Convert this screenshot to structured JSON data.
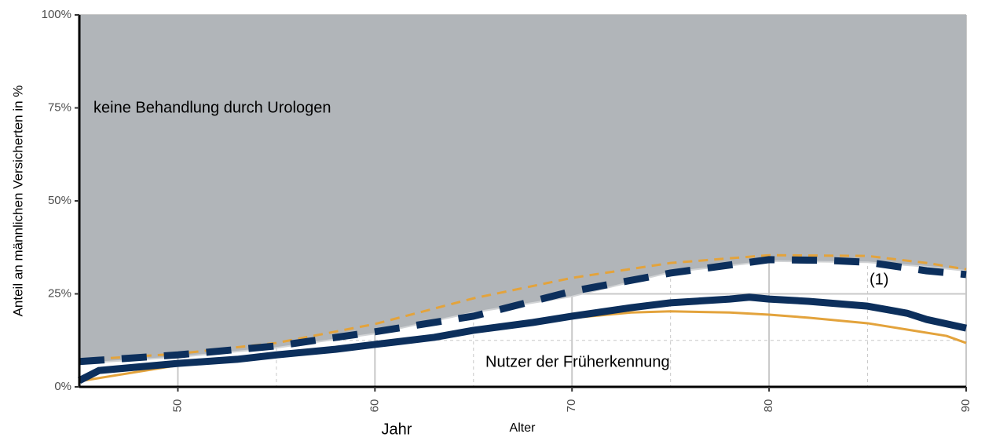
{
  "chart_data": {
    "type": "line",
    "ylabel": "Anteil an männlichen Versicherten in %",
    "xlabel": "Alter",
    "annotations": [
      "keine Behandlung durch Urologen",
      "Nutzer der Früherkennung",
      "(1)",
      "Jahr"
    ],
    "xlim": [
      45,
      90
    ],
    "ylim": [
      0,
      100
    ],
    "xticks": [
      50,
      60,
      70,
      80,
      90
    ],
    "yticks": [
      {
        "value": 0,
        "label": "0%"
      },
      {
        "value": 25,
        "label": "25%"
      },
      {
        "value": 50,
        "label": "50%"
      },
      {
        "value": 75,
        "label": "75%"
      },
      {
        "value": 100,
        "label": "100%"
      }
    ],
    "grid": true,
    "series": [
      {
        "style": "area",
        "color": "#b1b5b9",
        "x": [
          45,
          50,
          55,
          60,
          65,
          70,
          75,
          80,
          85,
          88,
          90
        ],
        "values": [
          6.3,
          8,
          10.5,
          14.3,
          20,
          24.3,
          30.8,
          33.8,
          33.5,
          32.3,
          31.2
        ]
      },
      {
        "style": "dashed",
        "weight": "thin",
        "color": "#e3a33c",
        "x": [
          45,
          50,
          55,
          60,
          65,
          70,
          75,
          80,
          85,
          88,
          90
        ],
        "values": [
          7.2,
          8.9,
          11.8,
          16.9,
          23.8,
          29.3,
          33.3,
          35.4,
          35.2,
          33.3,
          31.6
        ]
      },
      {
        "style": "dashed",
        "weight": "thick",
        "color": "#0c2f5c",
        "x": [
          45,
          50,
          55,
          60,
          65,
          70,
          75,
          80,
          83,
          85,
          88,
          90
        ],
        "values": [
          6.8,
          8.6,
          11,
          14.8,
          19,
          25.7,
          30.6,
          34.2,
          34,
          33.5,
          31.2,
          30.2
        ]
      },
      {
        "style": "solid",
        "weight": "thin",
        "color": "#e3a33c",
        "x": [
          45,
          50,
          55,
          60,
          65,
          70,
          73,
          75,
          78,
          80,
          82,
          85,
          87,
          89,
          90
        ],
        "values": [
          1.5,
          5.8,
          8,
          11,
          14.8,
          18.5,
          20,
          20.3,
          20,
          19.4,
          18.6,
          17.1,
          15.4,
          13.7,
          11.8
        ]
      },
      {
        "style": "solid",
        "weight": "thick",
        "color": "#0c2f5c",
        "x": [
          45,
          46,
          50,
          53,
          55,
          58,
          60,
          63,
          65,
          68,
          70,
          73,
          75,
          78,
          79,
          80,
          82,
          85,
          87,
          88,
          90
        ],
        "values": [
          1.7,
          4.4,
          6.3,
          7.4,
          8.6,
          10.1,
          11.4,
          13.3,
          15.2,
          17.3,
          19,
          21.3,
          22.6,
          23.6,
          24.1,
          23.6,
          23,
          21.7,
          19.8,
          18.1,
          15.8
        ]
      }
    ]
  }
}
